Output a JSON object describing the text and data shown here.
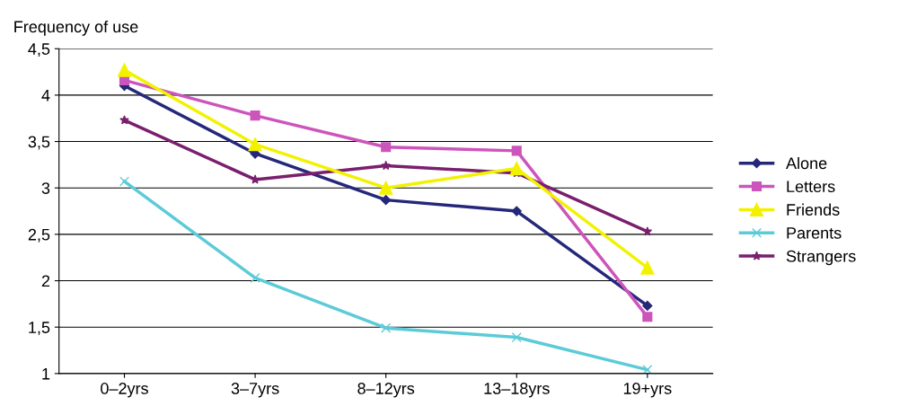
{
  "chart_data": {
    "type": "line",
    "ylabel": "Frequency of use",
    "categories": [
      "0–2yrs",
      "3–7yrs",
      "8–12yrs",
      "13–18yrs",
      "19+yrs"
    ],
    "series": [
      {
        "name": "Alone",
        "color": "#25287a",
        "marker": "diamond",
        "values": [
          4.1,
          3.37,
          2.87,
          2.75,
          1.73
        ]
      },
      {
        "name": "Letters",
        "color": "#cc55bb",
        "marker": "square",
        "values": [
          4.16,
          3.78,
          3.44,
          3.4,
          1.61
        ]
      },
      {
        "name": "Friends",
        "color": "#f2f200",
        "marker": "triangle",
        "values": [
          4.27,
          3.47,
          3.0,
          3.21,
          2.14
        ]
      },
      {
        "name": "Parents",
        "color": "#5ccbd8",
        "marker": "cross",
        "values": [
          3.07,
          2.03,
          1.49,
          1.39,
          1.04
        ]
      },
      {
        "name": "Strangers",
        "color": "#7a1f6e",
        "marker": "star",
        "values": [
          3.73,
          3.09,
          3.24,
          3.16,
          2.53
        ]
      }
    ],
    "ylim": [
      1,
      4.5
    ],
    "yticks": [
      1,
      {
        "value": 1.5,
        "label": "1,5"
      },
      2,
      {
        "value": 2.5,
        "label": "2,5"
      },
      3,
      {
        "value": 3.5,
        "label": "3,5"
      },
      4,
      {
        "value": 4.5,
        "label": "4,5"
      }
    ],
    "grid": "y",
    "legend": "right",
    "line_style": "solid"
  }
}
